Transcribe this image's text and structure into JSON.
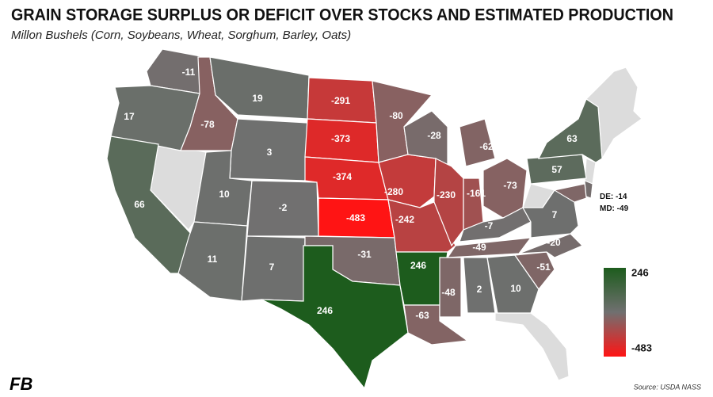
{
  "title": "GRAIN STORAGE SURPLUS OR DEFICIT OVER STOCKS AND ESTIMATED PRODUCTION",
  "subtitle": "Millon Bushels (Corn, Soybeans, Wheat, Sorghum, Barley, Oats)",
  "source": "Source: USDA NASS",
  "logo": "FB",
  "map": {
    "values": [
      -11,
      17,
      66,
      -78,
      19,
      3,
      10,
      -2,
      11,
      7,
      -291,
      -373,
      -374,
      -483,
      -31,
      246,
      -80,
      -280,
      -242,
      246,
      -63,
      -28,
      -230,
      -62,
      -161,
      -73,
      -7,
      -49,
      -48,
      2,
      10,
      -51,
      -20,
      7,
      57,
      63
    ]
  },
  "insets": [
    {
      "label": "DE:",
      "value": -14
    },
    {
      "label": "MD:",
      "value": -49
    }
  ],
  "legend": {
    "max": 246,
    "min": -483,
    "colors": [
      "#1d5c1d",
      "#707070",
      "#ff1414"
    ]
  }
}
